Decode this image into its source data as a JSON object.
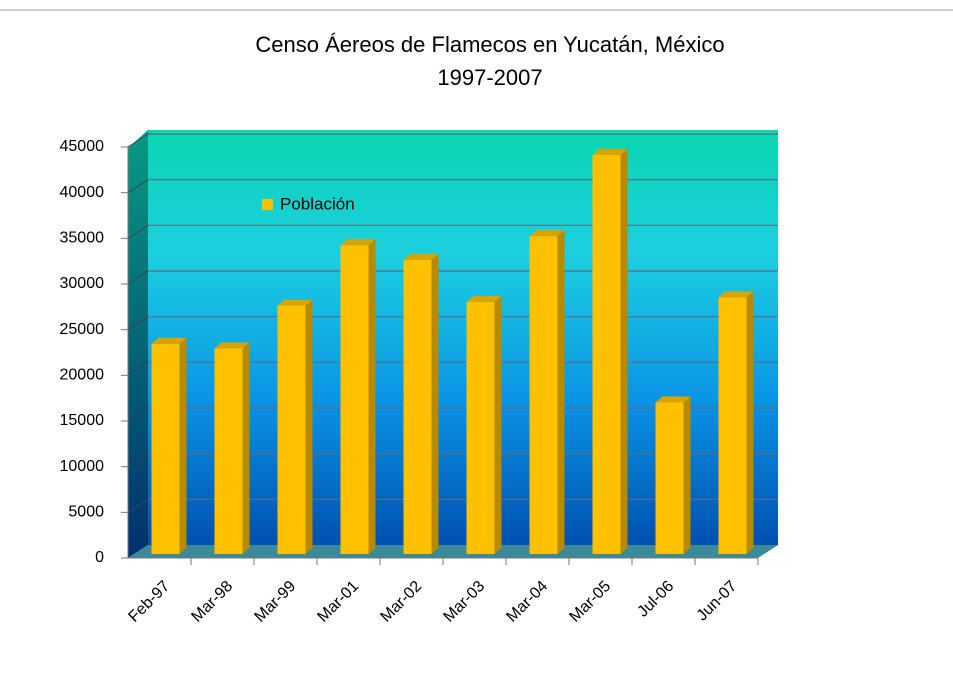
{
  "chart_data": {
    "type": "bar",
    "title": "Censo Áereos de Flamecos en Yucatán, México",
    "subtitle": "1997-2007",
    "categories": [
      "Feb-97",
      "Mar-98",
      "Mar-99",
      "Mar-01",
      "Mar-02",
      "Mar-03",
      "Mar-04",
      "Mar-05",
      "Jul-06",
      "Jun-07"
    ],
    "series": [
      {
        "name": "Población",
        "color": "#ffc000",
        "values": [
          23000,
          22500,
          27200,
          33800,
          32200,
          27600,
          34800,
          43700,
          16600,
          28100
        ]
      }
    ],
    "ylim": [
      0,
      45000
    ],
    "yticks": [
      0,
      5000,
      10000,
      15000,
      20000,
      25000,
      30000,
      35000,
      40000,
      45000
    ],
    "grid": true
  }
}
